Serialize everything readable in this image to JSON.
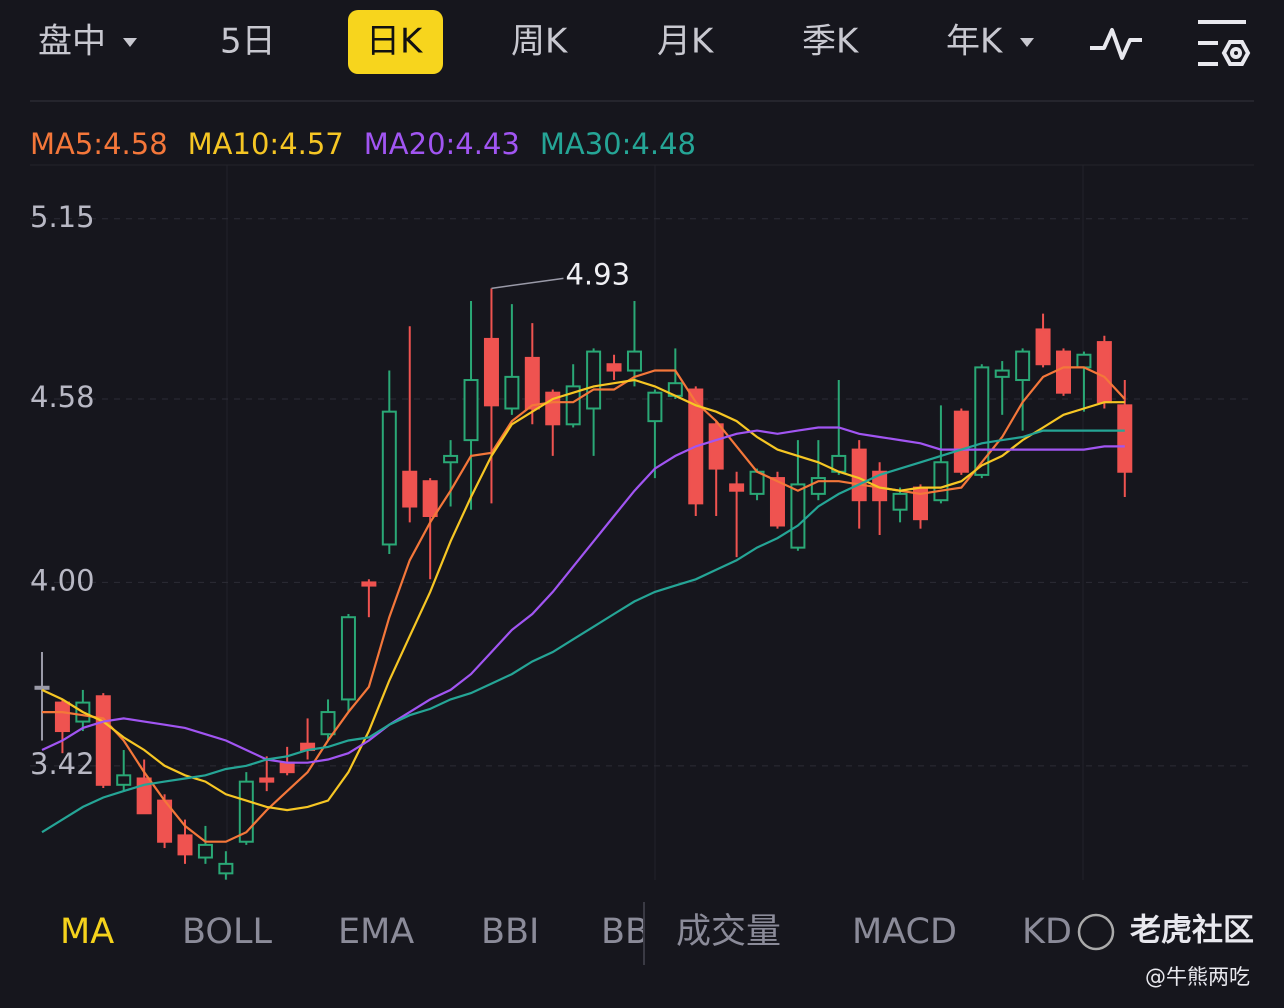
{
  "ui": {
    "top_tabs": [
      "盘中",
      "5日",
      "日K",
      "周K",
      "月K",
      "季K",
      "年K"
    ],
    "bottom_tabs": [
      "MA",
      "BOLL",
      "EMA",
      "BBI",
      "BB",
      "成交量",
      "MACD",
      "KD"
    ],
    "watermark": "老虎社区",
    "credit": "@牛熊两吃"
  },
  "chart_data": {
    "type": "candlestick",
    "up_color": "#2aa876",
    "down_color": "#ef5350",
    "flat_color": "#9a9aa8",
    "ylim": [
      3.04,
      5.32
    ],
    "yticks": [
      3.42,
      {
        "value": 4,
        "label": "4.00"
      },
      4.58,
      5.15
    ],
    "grid": true,
    "open": [
      3.67,
      3.62,
      3.56,
      3.64,
      3.36,
      3.38,
      3.31,
      3.2,
      3.13,
      3.08,
      3.18,
      3.38,
      3.43,
      3.49,
      3.52,
      3.63,
      4.0,
      4.12,
      4.35,
      4.32,
      4.38,
      4.45,
      4.77,
      4.55,
      4.71,
      4.6,
      4.5,
      4.55,
      4.69,
      4.67,
      4.51,
      4.59,
      4.61,
      4.5,
      4.31,
      4.28,
      4.33,
      4.11,
      4.28,
      4.35,
      4.42,
      4.35,
      4.23,
      4.3,
      4.26,
      4.54,
      4.34,
      4.65,
      4.64,
      4.8,
      4.73,
      4.68,
      4.76,
      4.56
    ],
    "high": [
      3.78,
      3.63,
      3.66,
      3.65,
      3.47,
      3.44,
      3.33,
      3.25,
      3.23,
      3.15,
      3.4,
      3.45,
      3.48,
      3.57,
      3.63,
      3.9,
      4.01,
      4.67,
      4.81,
      4.33,
      4.45,
      4.89,
      4.93,
      4.88,
      4.82,
      4.61,
      4.69,
      4.74,
      4.72,
      4.89,
      4.61,
      4.74,
      4.62,
      4.51,
      4.35,
      4.36,
      4.35,
      4.45,
      4.45,
      4.64,
      4.45,
      4.38,
      4.3,
      4.31,
      4.56,
      4.55,
      4.69,
      4.7,
      4.74,
      4.85,
      4.74,
      4.73,
      4.78,
      4.64
    ],
    "low": [
      3.5,
      3.46,
      3.53,
      3.35,
      3.34,
      3.27,
      3.16,
      3.11,
      3.11,
      3.06,
      3.17,
      3.34,
      3.39,
      3.44,
      3.5,
      3.59,
      3.89,
      4.09,
      4.19,
      4.01,
      4.24,
      4.23,
      4.25,
      4.53,
      4.5,
      4.4,
      4.49,
      4.4,
      4.64,
      4.62,
      4.33,
      4.58,
      4.21,
      4.21,
      4.08,
      4.26,
      4.17,
      4.1,
      4.26,
      4.34,
      4.17,
      4.15,
      4.19,
      4.17,
      4.25,
      4.34,
      4.33,
      4.53,
      4.48,
      4.68,
      4.59,
      4.54,
      4.55,
      4.27
    ],
    "close": [
      3.67,
      3.53,
      3.62,
      3.36,
      3.39,
      3.27,
      3.18,
      3.14,
      3.17,
      3.11,
      3.37,
      3.37,
      3.4,
      3.47,
      3.59,
      3.89,
      3.99,
      4.54,
      4.24,
      4.21,
      4.4,
      4.64,
      4.56,
      4.65,
      4.55,
      4.5,
      4.62,
      4.73,
      4.67,
      4.73,
      4.6,
      4.63,
      4.25,
      4.36,
      4.29,
      4.35,
      4.18,
      4.31,
      4.33,
      4.4,
      4.26,
      4.26,
      4.28,
      4.2,
      4.38,
      4.35,
      4.68,
      4.67,
      4.73,
      4.69,
      4.6,
      4.72,
      4.57,
      4.35
    ],
    "series": [
      {
        "name": "MA5:4.58",
        "color": "#f4773a",
        "values": [
          3.59,
          3.59,
          3.58,
          3.57,
          3.5,
          3.4,
          3.31,
          3.23,
          3.18,
          3.18,
          3.21,
          3.28,
          3.34,
          3.4,
          3.5,
          3.59,
          3.67,
          3.89,
          4.07,
          4.19,
          4.29,
          4.4,
          4.41,
          4.51,
          4.56,
          4.57,
          4.57,
          4.61,
          4.61,
          4.65,
          4.67,
          4.67,
          4.57,
          4.51,
          4.43,
          4.35,
          4.32,
          4.29,
          4.32,
          4.32,
          4.31,
          4.3,
          4.29,
          4.28,
          4.29,
          4.3,
          4.38,
          4.46,
          4.57,
          4.65,
          4.68,
          4.68,
          4.65,
          4.58
        ]
      },
      {
        "name": "MA10:4.57",
        "color": "#f6c624",
        "values": [
          3.66,
          3.63,
          3.59,
          3.56,
          3.51,
          3.47,
          3.42,
          3.39,
          3.37,
          3.33,
          3.31,
          3.29,
          3.28,
          3.29,
          3.31,
          3.4,
          3.53,
          3.69,
          3.83,
          3.97,
          4.13,
          4.27,
          4.4,
          4.5,
          4.54,
          4.58,
          4.6,
          4.62,
          4.63,
          4.64,
          4.62,
          4.59,
          4.56,
          4.54,
          4.51,
          4.46,
          4.42,
          4.4,
          4.38,
          4.35,
          4.33,
          4.3,
          4.29,
          4.3,
          4.3,
          4.32,
          4.37,
          4.4,
          4.45,
          4.49,
          4.53,
          4.55,
          4.57,
          4.57
        ]
      },
      {
        "name": "MA20:4.43",
        "color": "#a155f2",
        "values": [
          3.47,
          3.5,
          3.54,
          3.56,
          3.57,
          3.56,
          3.55,
          3.54,
          3.52,
          3.5,
          3.47,
          3.44,
          3.43,
          3.43,
          3.44,
          3.46,
          3.5,
          3.55,
          3.59,
          3.63,
          3.66,
          3.71,
          3.78,
          3.85,
          3.9,
          3.97,
          4.05,
          4.13,
          4.21,
          4.29,
          4.36,
          4.4,
          4.43,
          4.45,
          4.47,
          4.48,
          4.47,
          4.48,
          4.49,
          4.49,
          4.47,
          4.46,
          4.45,
          4.44,
          4.42,
          4.42,
          4.42,
          4.42,
          4.42,
          4.42,
          4.42,
          4.42,
          4.43,
          4.43
        ]
      },
      {
        "name": "MA30:4.48",
        "color": "#25a596",
        "values": [
          3.21,
          3.25,
          3.29,
          3.32,
          3.34,
          3.36,
          3.37,
          3.38,
          3.39,
          3.41,
          3.42,
          3.44,
          3.45,
          3.47,
          3.48,
          3.5,
          3.51,
          3.55,
          3.58,
          3.6,
          3.63,
          3.65,
          3.68,
          3.71,
          3.75,
          3.78,
          3.82,
          3.86,
          3.9,
          3.94,
          3.97,
          3.99,
          4.01,
          4.04,
          4.07,
          4.11,
          4.14,
          4.18,
          4.24,
          4.28,
          4.31,
          4.34,
          4.36,
          4.38,
          4.4,
          4.42,
          4.44,
          4.45,
          4.46,
          4.48,
          4.48,
          4.48,
          4.48,
          4.48
        ]
      }
    ]
  }
}
